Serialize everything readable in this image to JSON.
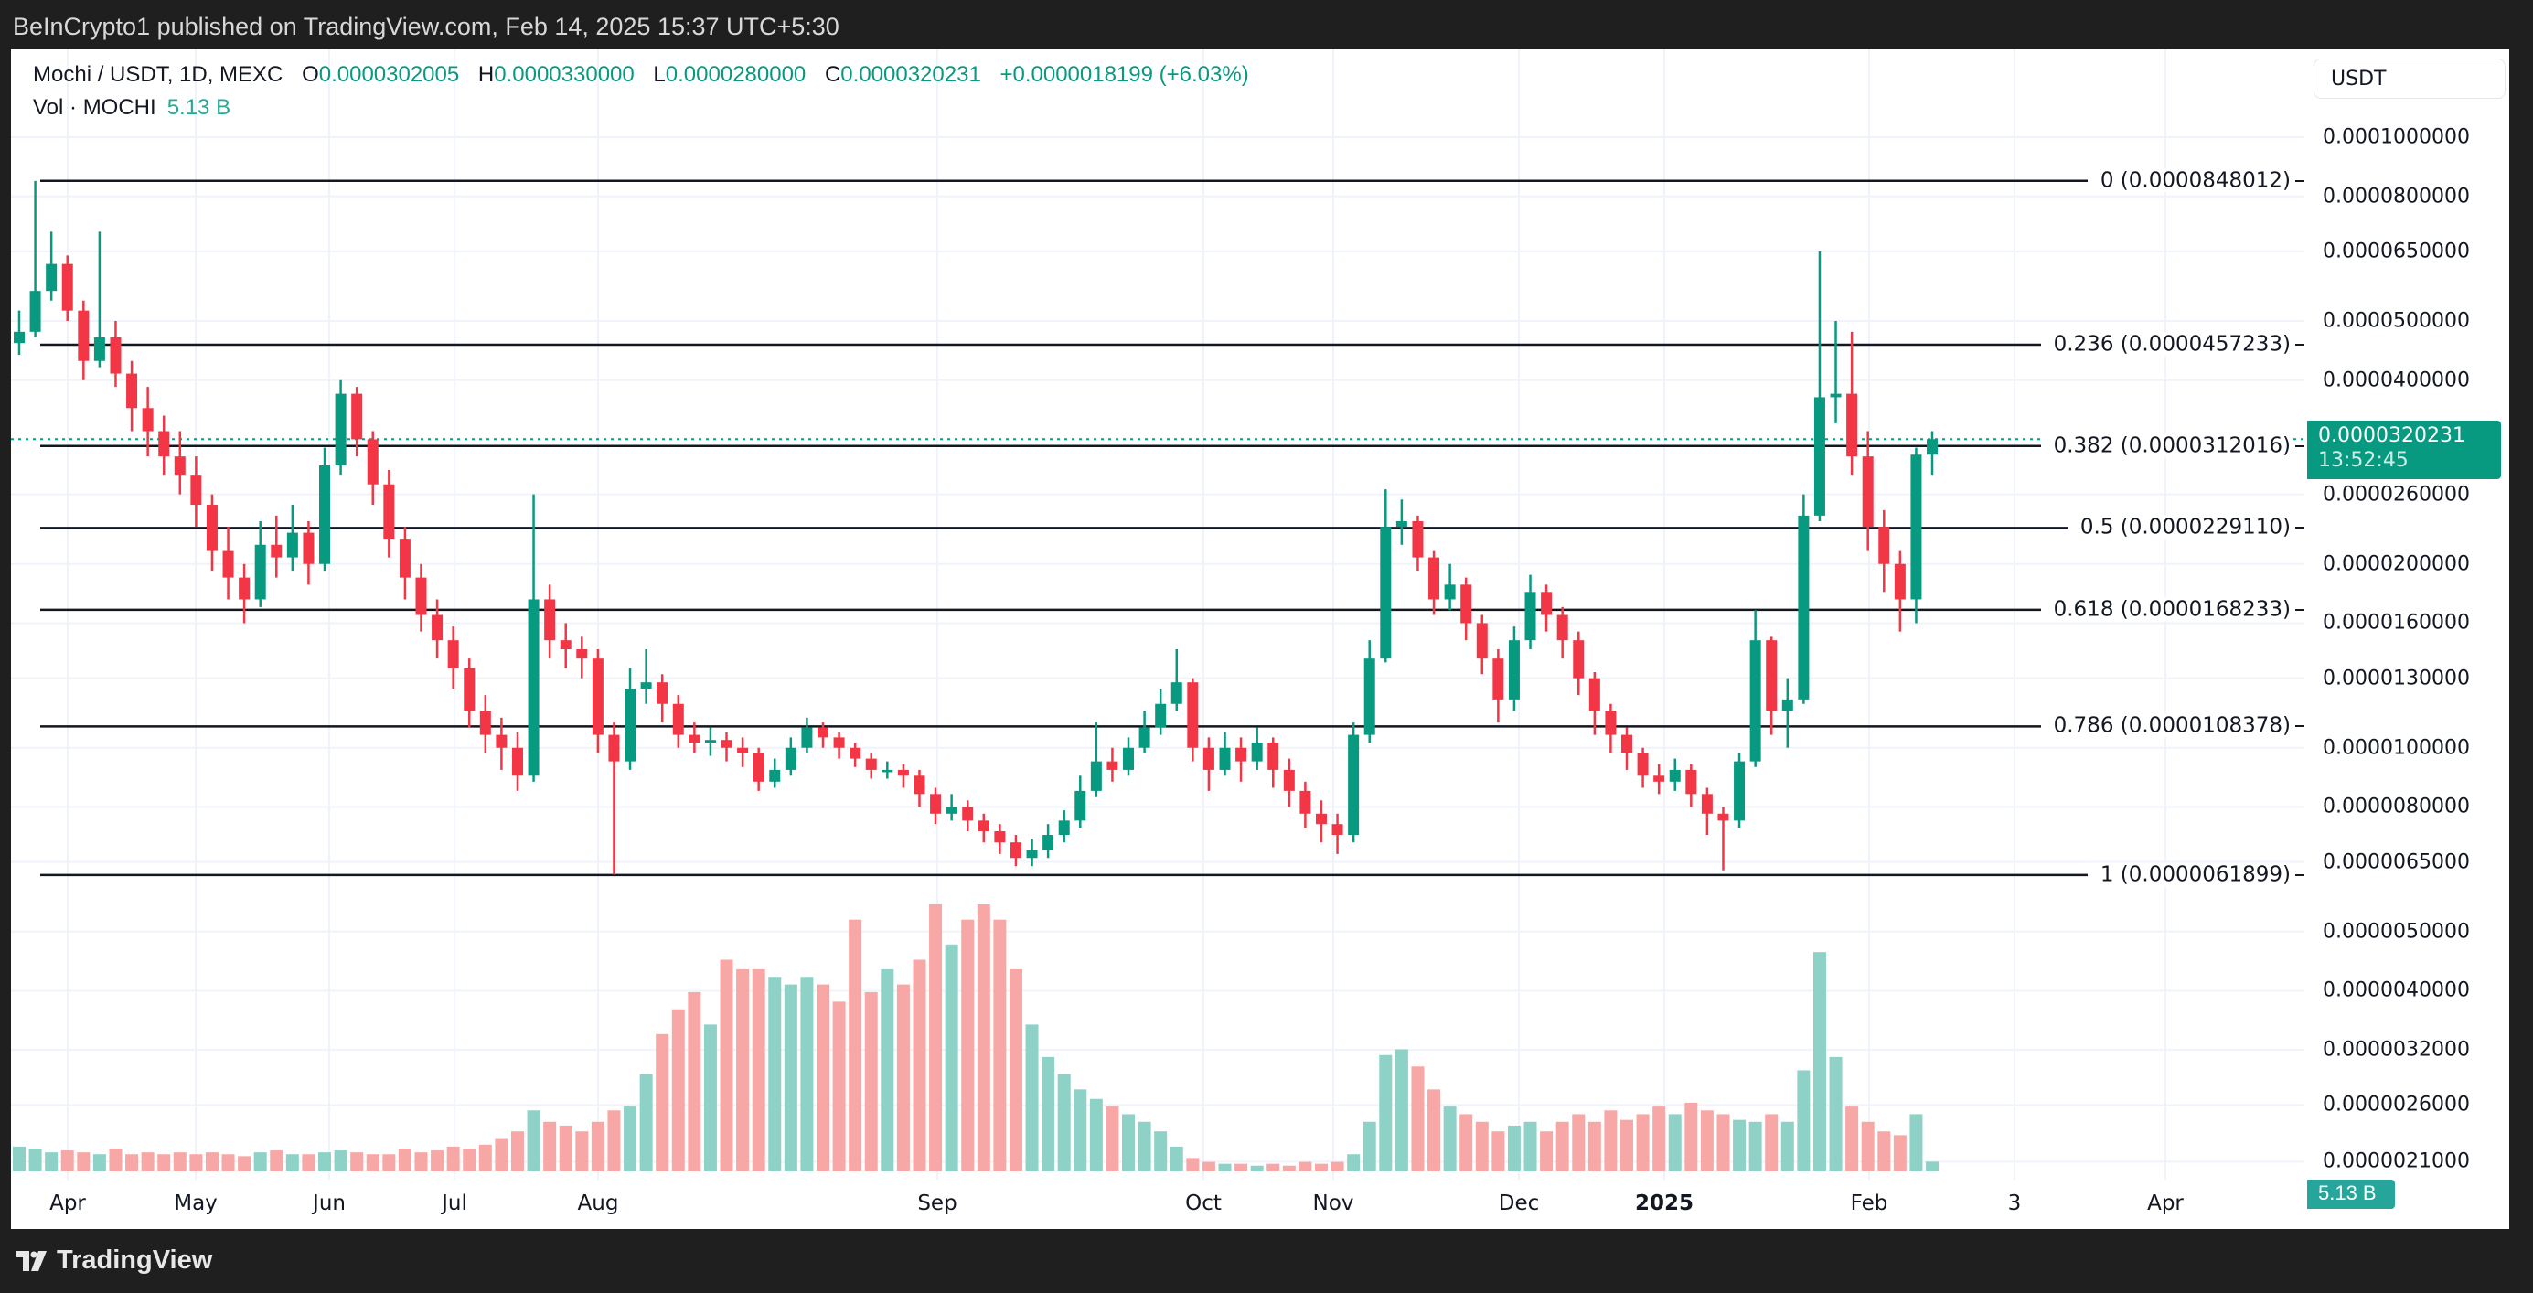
{
  "publisher_line": "BeInCrypto1 published on TradingView.com, Feb 14, 2025 15:37 UTC+5:30",
  "legend": {
    "symbol": "Mochi / USDT, 1D, MEXC",
    "o_label": "O",
    "o_value": "0.0000302005",
    "h_label": "H",
    "h_value": "0.0000330000",
    "l_label": "L",
    "l_value": "0.0000280000",
    "c_label": "C",
    "c_value": "0.0000320231",
    "change": "+0.0000018199 (+6.03%)",
    "vol_label": "Vol · MOCHI",
    "vol_value": "5.13 B"
  },
  "currency_button": "USDT",
  "price_tag": {
    "price": "0.0000320231",
    "countdown": "13:52:45"
  },
  "volume_tag": "5.13 B",
  "footer_logo": "TradingView",
  "colors": {
    "up": "#089981",
    "down": "#f23645",
    "vol_up": "#8ed1c6",
    "vol_down": "#f7a8a6",
    "fib": "#131722",
    "last_price": "#089981"
  },
  "chart_data": {
    "type": "candlestick",
    "title": "Mochi / USDT, 1D, MEXC",
    "price_unit": "1e-7 USDT",
    "volume_unit": "B MOCHI",
    "y_scale": "log",
    "last_price": 320.231,
    "y_axis_ticks": [
      {
        "label": "0.0001000000",
        "value": 1000
      },
      {
        "label": "0.0000800000",
        "value": 800
      },
      {
        "label": "0.0000650000",
        "value": 650
      },
      {
        "label": "0.0000500000",
        "value": 500
      },
      {
        "label": "0.0000400000",
        "value": 400
      },
      {
        "label": "0.0000260000",
        "value": 260
      },
      {
        "label": "0.0000200000",
        "value": 200
      },
      {
        "label": "0.0000160000",
        "value": 160
      },
      {
        "label": "0.0000130000",
        "value": 130
      },
      {
        "label": "0.0000100000",
        "value": 100
      },
      {
        "label": "0.0000080000",
        "value": 80
      },
      {
        "label": "0.0000065000",
        "value": 65
      },
      {
        "label": "0.0000050000",
        "value": 50
      },
      {
        "label": "0.0000040000",
        "value": 40
      },
      {
        "label": "0.0000032000",
        "value": 32
      },
      {
        "label": "0.0000026000",
        "value": 26
      },
      {
        "label": "0.0000021000",
        "value": 21
      }
    ],
    "x_axis_ticks": [
      {
        "label": "Apr"
      },
      {
        "label": "May"
      },
      {
        "label": "Jun"
      },
      {
        "label": "Jul"
      },
      {
        "label": "Aug"
      },
      {
        "label": "Sep"
      },
      {
        "label": "Oct"
      },
      {
        "label": "Nov"
      },
      {
        "label": "Dec"
      },
      {
        "label": "2025",
        "bold": true
      },
      {
        "label": "Feb"
      },
      {
        "label": "3"
      },
      {
        "label": "Apr"
      }
    ],
    "fibonacci": [
      {
        "label": "0 (0.0000848012)",
        "value": 848.012
      },
      {
        "label": "0.236 (0.0000457233)",
        "value": 457.233
      },
      {
        "label": "0.382 (0.0000312016)",
        "value": 312.016
      },
      {
        "label": "0.5 (0.0000229110)",
        "value": 229.11
      },
      {
        "label": "0.618 (0.0000168233)",
        "value": 168.233
      },
      {
        "label": "0.786 (0.0000108378)",
        "value": 108.378
      },
      {
        "label": "1 (0.0000061899)",
        "value": 61.899
      }
    ],
    "open": [
      460,
      480,
      560,
      620,
      520,
      430,
      470,
      410,
      360,
      330,
      300,
      280,
      250,
      210,
      190,
      175,
      215,
      205,
      225,
      200,
      290,
      380,
      320,
      270,
      220,
      190,
      165,
      150,
      135,
      115,
      105,
      100,
      90,
      175,
      150,
      145,
      140,
      105,
      95,
      125,
      128,
      118,
      105,
      102,
      103,
      100,
      98,
      88,
      92,
      100,
      108,
      104,
      100,
      96,
      92,
      92,
      90,
      84,
      78,
      80,
      76,
      73,
      70,
      66,
      68,
      72,
      76,
      85,
      95,
      92,
      100,
      108,
      118,
      128,
      100,
      92,
      100,
      95,
      102,
      92,
      85,
      78,
      75,
      72,
      105,
      140,
      230,
      235,
      205,
      175,
      185,
      160,
      140,
      120,
      150,
      180,
      165,
      150,
      130,
      115,
      105,
      98,
      90,
      88,
      92,
      84,
      78,
      76,
      95,
      150,
      115,
      120,
      240,
      375,
      380,
      300,
      230,
      200,
      175,
      302.005
    ],
    "high": [
      520,
      848,
      700,
      640,
      540,
      700,
      500,
      430,
      390,
      350,
      330,
      300,
      260,
      230,
      200,
      235,
      240,
      250,
      235,
      310,
      400,
      390,
      330,
      285,
      230,
      200,
      175,
      158,
      140,
      122,
      112,
      106,
      260,
      185,
      160,
      152,
      145,
      110,
      135,
      145,
      132,
      122,
      110,
      108,
      106,
      104,
      100,
      96,
      104,
      112,
      110,
      106,
      102,
      98,
      95,
      94,
      92,
      86,
      84,
      82,
      78,
      75,
      72,
      71,
      75,
      79,
      90,
      110,
      100,
      104,
      115,
      125,
      145,
      130,
      104,
      106,
      104,
      108,
      104,
      96,
      88,
      82,
      78,
      110,
      150,
      265,
      255,
      240,
      210,
      200,
      190,
      165,
      145,
      158,
      192,
      185,
      170,
      155,
      133,
      118,
      108,
      100,
      94,
      96,
      94,
      86,
      80,
      98,
      168,
      152,
      130,
      260,
      650,
      500,
      480,
      330,
      245,
      210,
      310,
      330
    ],
    "low": [
      440,
      470,
      540,
      500,
      400,
      420,
      390,
      330,
      300,
      280,
      260,
      230,
      195,
      175,
      160,
      170,
      190,
      195,
      185,
      195,
      280,
      300,
      250,
      205,
      175,
      155,
      140,
      125,
      108,
      98,
      92,
      85,
      88,
      140,
      135,
      130,
      98,
      62,
      92,
      118,
      110,
      100,
      98,
      97,
      95,
      93,
      85,
      86,
      90,
      98,
      100,
      96,
      93,
      89,
      89,
      86,
      80,
      75,
      76,
      73,
      70,
      67,
      64,
      64,
      66,
      70,
      74,
      83,
      88,
      90,
      98,
      105,
      115,
      95,
      85,
      90,
      88,
      92,
      86,
      80,
      74,
      70,
      67,
      70,
      102,
      138,
      215,
      195,
      165,
      168,
      150,
      132,
      110,
      115,
      145,
      155,
      140,
      122,
      105,
      98,
      92,
      86,
      84,
      85,
      80,
      72,
      63,
      74,
      93,
      105,
      100,
      118,
      235,
      340,
      280,
      210,
      180,
      155,
      160,
      280
    ],
    "close": [
      480,
      560,
      620,
      520,
      430,
      470,
      410,
      360,
      330,
      300,
      280,
      250,
      210,
      190,
      175,
      215,
      205,
      225,
      200,
      290,
      380,
      320,
      270,
      220,
      190,
      165,
      150,
      135,
      115,
      105,
      100,
      90,
      175,
      150,
      145,
      140,
      105,
      95,
      125,
      128,
      118,
      105,
      102,
      103,
      100,
      98,
      88,
      92,
      100,
      108,
      104,
      100,
      96,
      92,
      92,
      90,
      84,
      78,
      80,
      76,
      73,
      70,
      66,
      68,
      72,
      76,
      85,
      95,
      92,
      100,
      108,
      118,
      128,
      100,
      92,
      100,
      95,
      102,
      92,
      85,
      78,
      75,
      72,
      105,
      140,
      230,
      235,
      205,
      175,
      185,
      160,
      140,
      120,
      150,
      180,
      165,
      150,
      130,
      115,
      105,
      98,
      90,
      88,
      92,
      84,
      78,
      76,
      95,
      150,
      115,
      120,
      240,
      375,
      380,
      300,
      230,
      200,
      175,
      302,
      320.231
    ],
    "volume": [
      13,
      12,
      10,
      11,
      10,
      9,
      12,
      9,
      10,
      9,
      10,
      9,
      10,
      9,
      8,
      10,
      11,
      9,
      9,
      10,
      11,
      10,
      9,
      9,
      12,
      10,
      11,
      13,
      12,
      14,
      17,
      21,
      32,
      26,
      24,
      21,
      26,
      32,
      34,
      51,
      72,
      85,
      94,
      77,
      111,
      106,
      106,
      102,
      98,
      102,
      98,
      89,
      132,
      94,
      106,
      98,
      111,
      140,
      119,
      132,
      140,
      132,
      106,
      77,
      60,
      51,
      43,
      38,
      34,
      30,
      26,
      21,
      13,
      7,
      5,
      4,
      4,
      3,
      4,
      3,
      5,
      4,
      5,
      9,
      26,
      61,
      64,
      55,
      43,
      34,
      30,
      26,
      21,
      24,
      26,
      21,
      26,
      30,
      26,
      32,
      27,
      30,
      34,
      30,
      36,
      32,
      30,
      27,
      26,
      30,
      26,
      53,
      115,
      60,
      34,
      26,
      21,
      19,
      30,
      5.13
    ]
  }
}
